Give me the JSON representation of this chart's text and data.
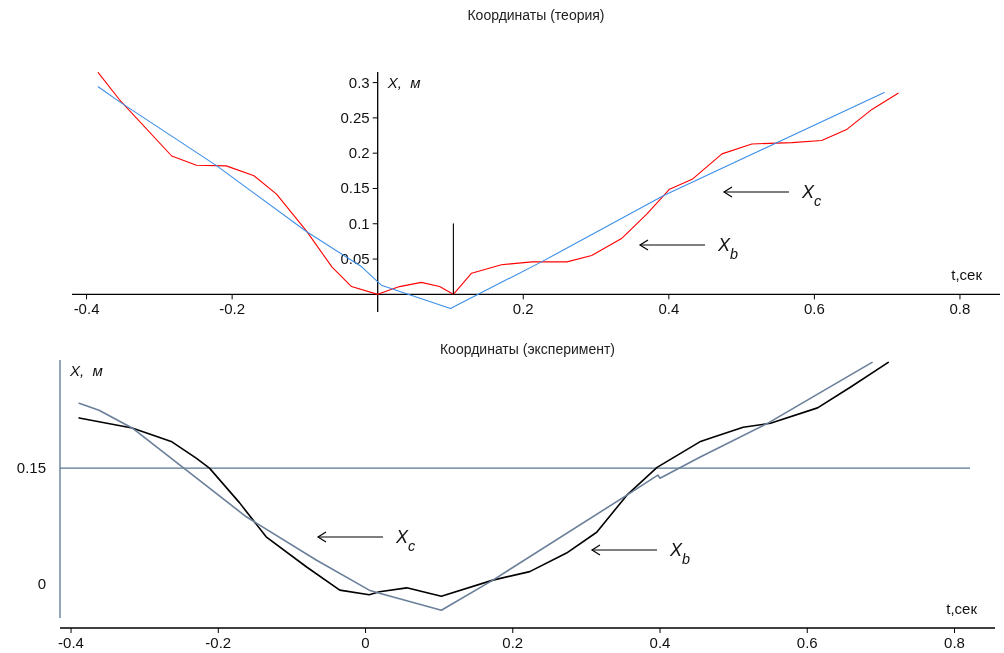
{
  "chart_data": [
    {
      "type": "line",
      "title": "Координаты (теория)",
      "xlabel": "t,сек",
      "ylabel": "X,  м",
      "xlim": [
        -0.42,
        0.855
      ],
      "ylim": [
        -0.025,
        0.315
      ],
      "xticks": [
        -0.4,
        -0.2,
        0.2,
        0.4,
        0.6,
        0.8
      ],
      "yticks": [
        0.05,
        0.1,
        0.15,
        0.2,
        0.25,
        0.3
      ],
      "series": [
        {
          "color": "#ff0000",
          "x": [
            -0.384,
            -0.355,
            -0.283,
            -0.249,
            -0.208,
            -0.17,
            -0.139,
            -0.098,
            -0.063,
            -0.036,
            0,
            0.03,
            0.06,
            0.085,
            0.104,
            0.129,
            0.17,
            0.212,
            0.26,
            0.294,
            0.335,
            0.37,
            0.401,
            0.432,
            0.473,
            0.514,
            0.569,
            0.61,
            0.645,
            0.679,
            0.715
          ],
          "values": [
            0.314,
            0.276,
            0.196,
            0.183,
            0.182,
            0.168,
            0.142,
            0.09,
            0.039,
            0.011,
            0,
            0.011,
            0.017,
            0.011,
            0,
            0.03,
            0.042,
            0.046,
            0.046,
            0.055,
            0.079,
            0.114,
            0.149,
            0.163,
            0.199,
            0.213,
            0.215,
            0.218,
            0.234,
            0.262,
            0.285
          ]
        },
        {
          "color": "#3b8ee8",
          "x": [
            -0.384,
            -0.355,
            -0.221,
            -0.098,
            -0.022,
            0.005,
            0.1,
            0.225,
            0.393,
            0.696
          ],
          "values": [
            0.294,
            0.273,
            0.182,
            0.089,
            0.039,
            0.013,
            -0.02,
            0.046,
            0.14,
            0.286
          ]
        },
        {
          "color": "#000000",
          "x": [
            0.104,
            0.104
          ],
          "values": [
            0,
            0.1
          ]
        }
      ],
      "annotations": [
        "X$_{c}$",
        "X$_{b}$"
      ]
    },
    {
      "type": "line",
      "title": "Координаты (эксперимент)",
      "xlabel": "t,сек",
      "ylabel": "X,  м",
      "xlim": [
        -0.415,
        0.855
      ],
      "ylim": [
        -0.057,
        0.29
      ],
      "xticks": [
        -0.4,
        -0.2,
        0,
        0.2,
        0.4,
        0.6,
        0.8
      ],
      "yticks": [
        0,
        0.15
      ],
      "series": [
        {
          "color": "#000000",
          "x": [
            -0.389,
            -0.317,
            -0.263,
            -0.23,
            -0.212,
            -0.171,
            -0.135,
            -0.08,
            -0.035,
            0.005,
            0.019,
            0.056,
            0.103,
            0.173,
            0.223,
            0.273,
            0.314,
            0.355,
            0.396,
            0.454,
            0.472,
            0.513,
            0.55,
            0.614,
            0.659,
            0.71
          ],
          "values": [
            0.215,
            0.202,
            0.184,
            0.163,
            0.15,
            0.105,
            0.061,
            0.022,
            -0.008,
            -0.014,
            -0.01,
            -0.005,
            -0.016,
            0.005,
            0.016,
            0.04,
            0.067,
            0.115,
            0.151,
            0.184,
            0.19,
            0.203,
            0.208,
            0.228,
            0.255,
            0.287
          ]
        },
        {
          "color": "#6a7f9a",
          "x": [
            -0.389,
            -0.362,
            -0.317,
            -0.162,
            -0.067,
            0.005,
            0.019,
            0.103,
            0.173,
            0.355,
            0.397,
            0.4,
            0.454,
            0.546,
            0.688
          ],
          "values": [
            0.234,
            0.225,
            0.202,
            0.087,
            0.031,
            -0.008,
            -0.012,
            -0.034,
            0.005,
            0.115,
            0.141,
            0.137,
            0.164,
            0.208,
            0.287
          ]
        }
      ],
      "ref_lines": [
        {
          "axis": "y",
          "value": 0.15,
          "color": "#5a7590"
        }
      ],
      "annotations": [
        "X$_{c}$",
        "X$_{b}$"
      ]
    }
  ]
}
